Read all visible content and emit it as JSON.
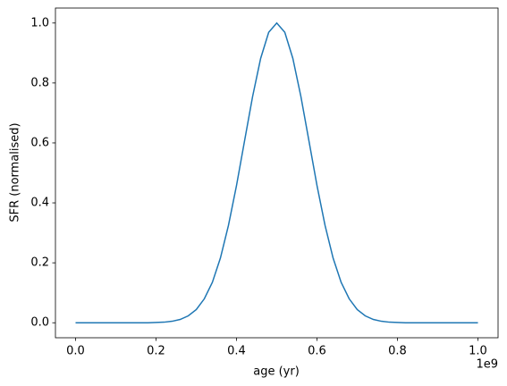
{
  "chart_data": {
    "type": "line",
    "xlabel": "age (yr)",
    "ylabel": "SFR (normalised)",
    "x_offset_label": "1e9",
    "x": [
      0,
      20000000,
      40000000,
      60000000,
      80000000,
      100000000,
      120000000,
      140000000,
      160000000,
      180000000,
      200000000,
      220000000,
      240000000,
      260000000,
      280000000,
      300000000,
      320000000,
      340000000,
      360000000,
      380000000,
      400000000,
      420000000,
      440000000,
      460000000,
      480000000,
      500000000,
      520000000,
      540000000,
      560000000,
      580000000,
      600000000,
      620000000,
      640000000,
      660000000,
      680000000,
      700000000,
      720000000,
      740000000,
      760000000,
      780000000,
      800000000,
      820000000,
      840000000,
      860000000,
      880000000,
      900000000,
      920000000,
      940000000,
      960000000,
      980000000,
      1000000000
    ],
    "series": [
      {
        "color": "#1f77b4",
        "values": [
          0,
          0,
          0,
          0,
          0,
          0,
          0,
          0,
          0,
          0,
          0.001,
          0.002,
          0.005,
          0.011,
          0.023,
          0.044,
          0.08,
          0.135,
          0.216,
          0.325,
          0.458,
          0.607,
          0.755,
          0.882,
          0.969,
          1,
          0.969,
          0.882,
          0.755,
          0.607,
          0.458,
          0.325,
          0.216,
          0.135,
          0.08,
          0.044,
          0.023,
          0.011,
          0.005,
          0.002,
          0.001,
          0,
          0,
          0,
          0,
          0,
          0,
          0,
          0,
          0,
          0
        ]
      }
    ],
    "xlim": [
      -50000000,
      1050000000
    ],
    "xticks": [
      {
        "value": 0,
        "label": "0.0"
      },
      {
        "value": 200000000,
        "label": "0.2"
      },
      {
        "value": 400000000,
        "label": "0.4"
      },
      {
        "value": 600000000,
        "label": "0.6"
      },
      {
        "value": 800000000,
        "label": "0.8"
      },
      {
        "value": 1000000000,
        "label": "1.0"
      }
    ],
    "ylim": [
      -0.05,
      1.05
    ],
    "yticks": [
      {
        "value": 0,
        "label": "0.0"
      },
      0.2,
      0.4,
      0.6,
      0.8,
      {
        "value": 1,
        "label": "1.0"
      }
    ],
    "grid": false
  }
}
